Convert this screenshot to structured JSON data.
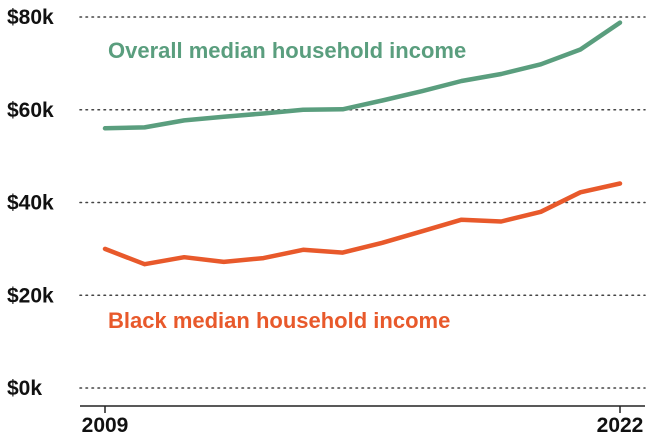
{
  "chart_data": {
    "type": "line",
    "title": "",
    "xlabel": "",
    "ylabel": "",
    "x": [
      2009,
      2010,
      2011,
      2012,
      2013,
      2014,
      2015,
      2016,
      2017,
      2018,
      2019,
      2020,
      2021,
      2022
    ],
    "x_tick_labels": [
      "2009",
      "2022"
    ],
    "ylim": [
      0,
      80000
    ],
    "y_ticks": [
      0,
      20000,
      40000,
      60000,
      80000
    ],
    "y_tick_labels": [
      "$0k",
      "$20k",
      "$40k",
      "$60k",
      "$80k"
    ],
    "grid": "horizontal dotted",
    "series": [
      {
        "name": "Overall median household income",
        "color": "#5a9e7e",
        "values": [
          56000,
          56200,
          57700,
          58500,
          59200,
          60000,
          60100,
          62000,
          64000,
          66200,
          67700,
          69800,
          73000,
          78800
        ]
      },
      {
        "name": "Black median household income",
        "color": "#e8592b",
        "values": [
          30000,
          26700,
          28200,
          27200,
          28000,
          29800,
          29200,
          31300,
          33800,
          36300,
          35900,
          38000,
          42200,
          44100
        ]
      }
    ]
  }
}
